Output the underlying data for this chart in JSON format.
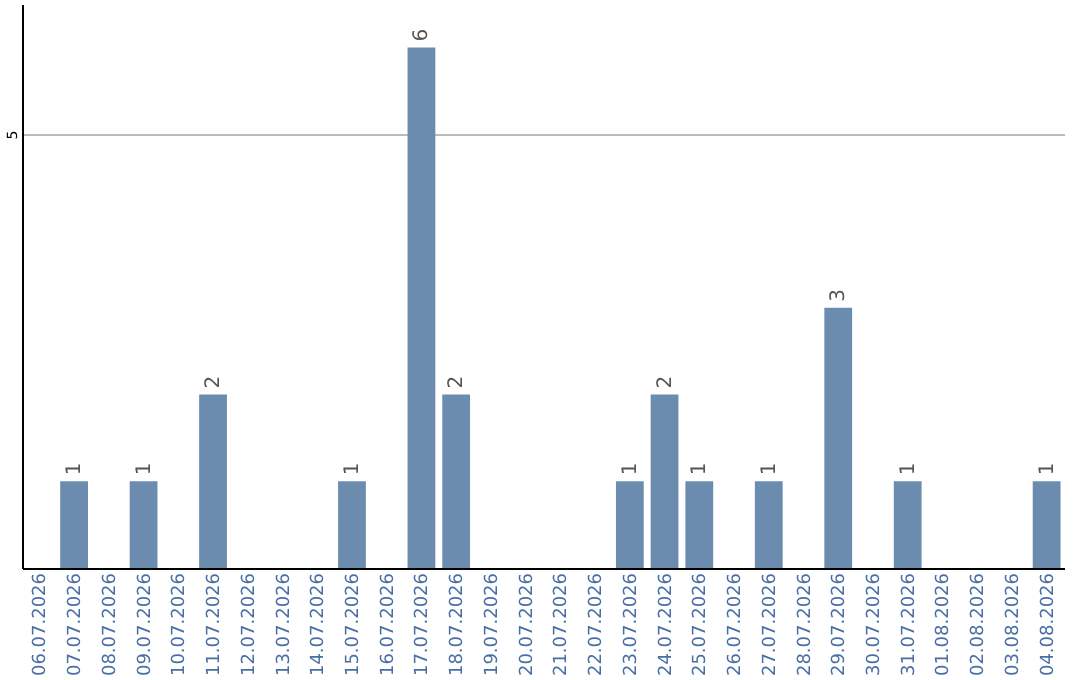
{
  "chart_data": {
    "type": "bar",
    "categories": [
      "06.07.2026",
      "07.07.2026",
      "08.07.2026",
      "09.07.2026",
      "10.07.2026",
      "11.07.2026",
      "12.07.2026",
      "13.07.2026",
      "14.07.2026",
      "15.07.2026",
      "16.07.2026",
      "17.07.2026",
      "18.07.2026",
      "19.07.2026",
      "20.07.2026",
      "21.07.2026",
      "22.07.2026",
      "23.07.2026",
      "24.07.2026",
      "25.07.2026",
      "26.07.2026",
      "27.07.2026",
      "28.07.2026",
      "29.07.2026",
      "30.07.2026",
      "31.07.2026",
      "01.08.2026",
      "02.08.2026",
      "03.08.2026",
      "04.08.2026"
    ],
    "values": [
      0,
      1,
      0,
      1,
      0,
      2,
      0,
      0,
      0,
      1,
      0,
      6,
      2,
      0,
      0,
      0,
      0,
      1,
      2,
      1,
      0,
      1,
      0,
      3,
      0,
      1,
      0,
      0,
      0,
      1
    ],
    "value_labels": [
      null,
      "1",
      null,
      "1",
      null,
      "2",
      null,
      null,
      null,
      "1",
      null,
      "6",
      "2",
      null,
      null,
      null,
      null,
      "1",
      "2",
      "1",
      null,
      "1",
      null,
      "3",
      null,
      "1",
      null,
      null,
      null,
      "1"
    ],
    "color": "#6b8cae",
    "ylim": [
      0,
      6.5
    ],
    "yticks": [
      5
    ],
    "grid": "y"
  }
}
